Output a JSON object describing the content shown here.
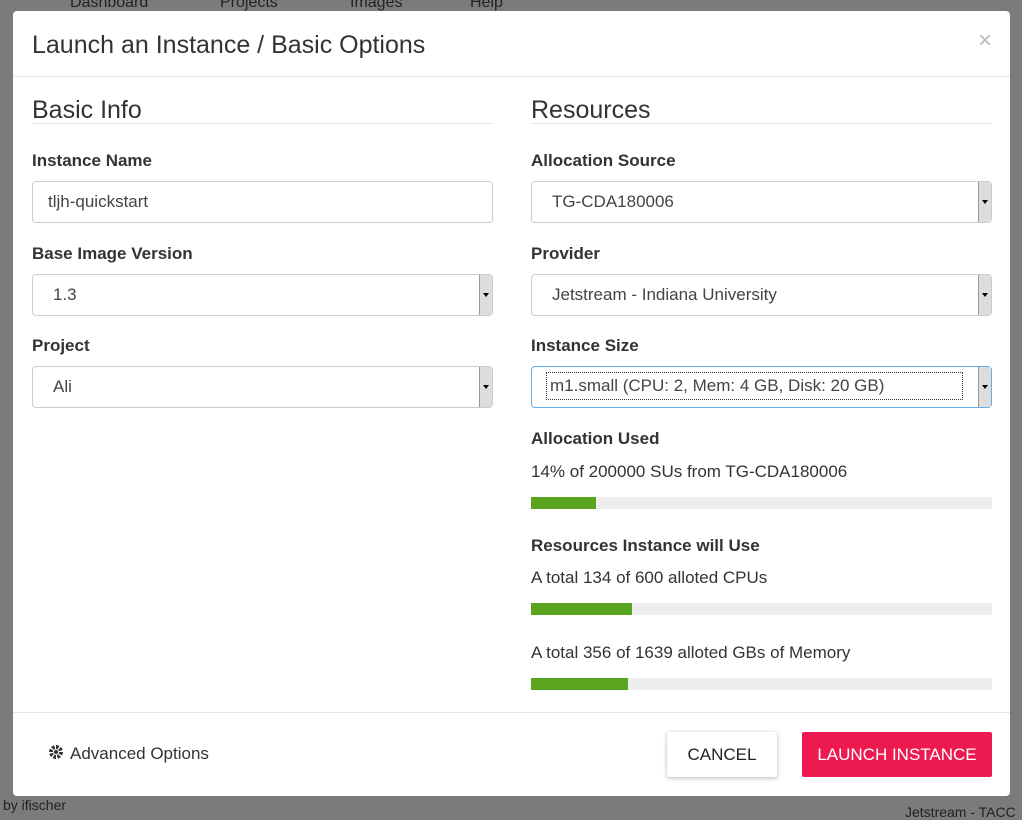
{
  "background": {
    "nav": [
      "Dashboard",
      "Projects",
      "Images",
      "Help"
    ],
    "footer_left": "by ifischer",
    "footer_right": "Jetstream - TACC"
  },
  "modal": {
    "title": "Launch an Instance / Basic Options",
    "close": "×",
    "basic_info": {
      "heading": "Basic Info",
      "fields": [
        {
          "label": "Instance Name",
          "value": "tljh-quickstart"
        },
        {
          "label": "Base Image Version",
          "value": "1.3"
        },
        {
          "label": "Project",
          "value": "Ali"
        }
      ]
    },
    "resources": {
      "heading": "Resources",
      "fields": [
        {
          "label": "Allocation Source",
          "value": "TG-CDA180006"
        },
        {
          "label": "Provider",
          "value": "Jetstream - Indiana University"
        },
        {
          "label": "Instance Size",
          "value": "m1.small (CPU: 2, Mem: 4 GB, Disk: 20 GB)"
        }
      ],
      "allocation_heading": "Allocation Used",
      "allocation": {
        "text": "14% of 200000 SUs from TG-CDA180006",
        "fill": 14
      },
      "usage_heading": "Resources Instance will Use",
      "usage": [
        {
          "text": "A total 134 of 600 alloted CPUs",
          "fill": 22
        },
        {
          "text": "A total 356 of 1639 alloted GBs of Memory",
          "fill": 21
        }
      ]
    },
    "footer": {
      "advanced": "Advanced Options",
      "cancel": "CANCEL",
      "launch": "LAUNCH INSTANCE"
    }
  }
}
